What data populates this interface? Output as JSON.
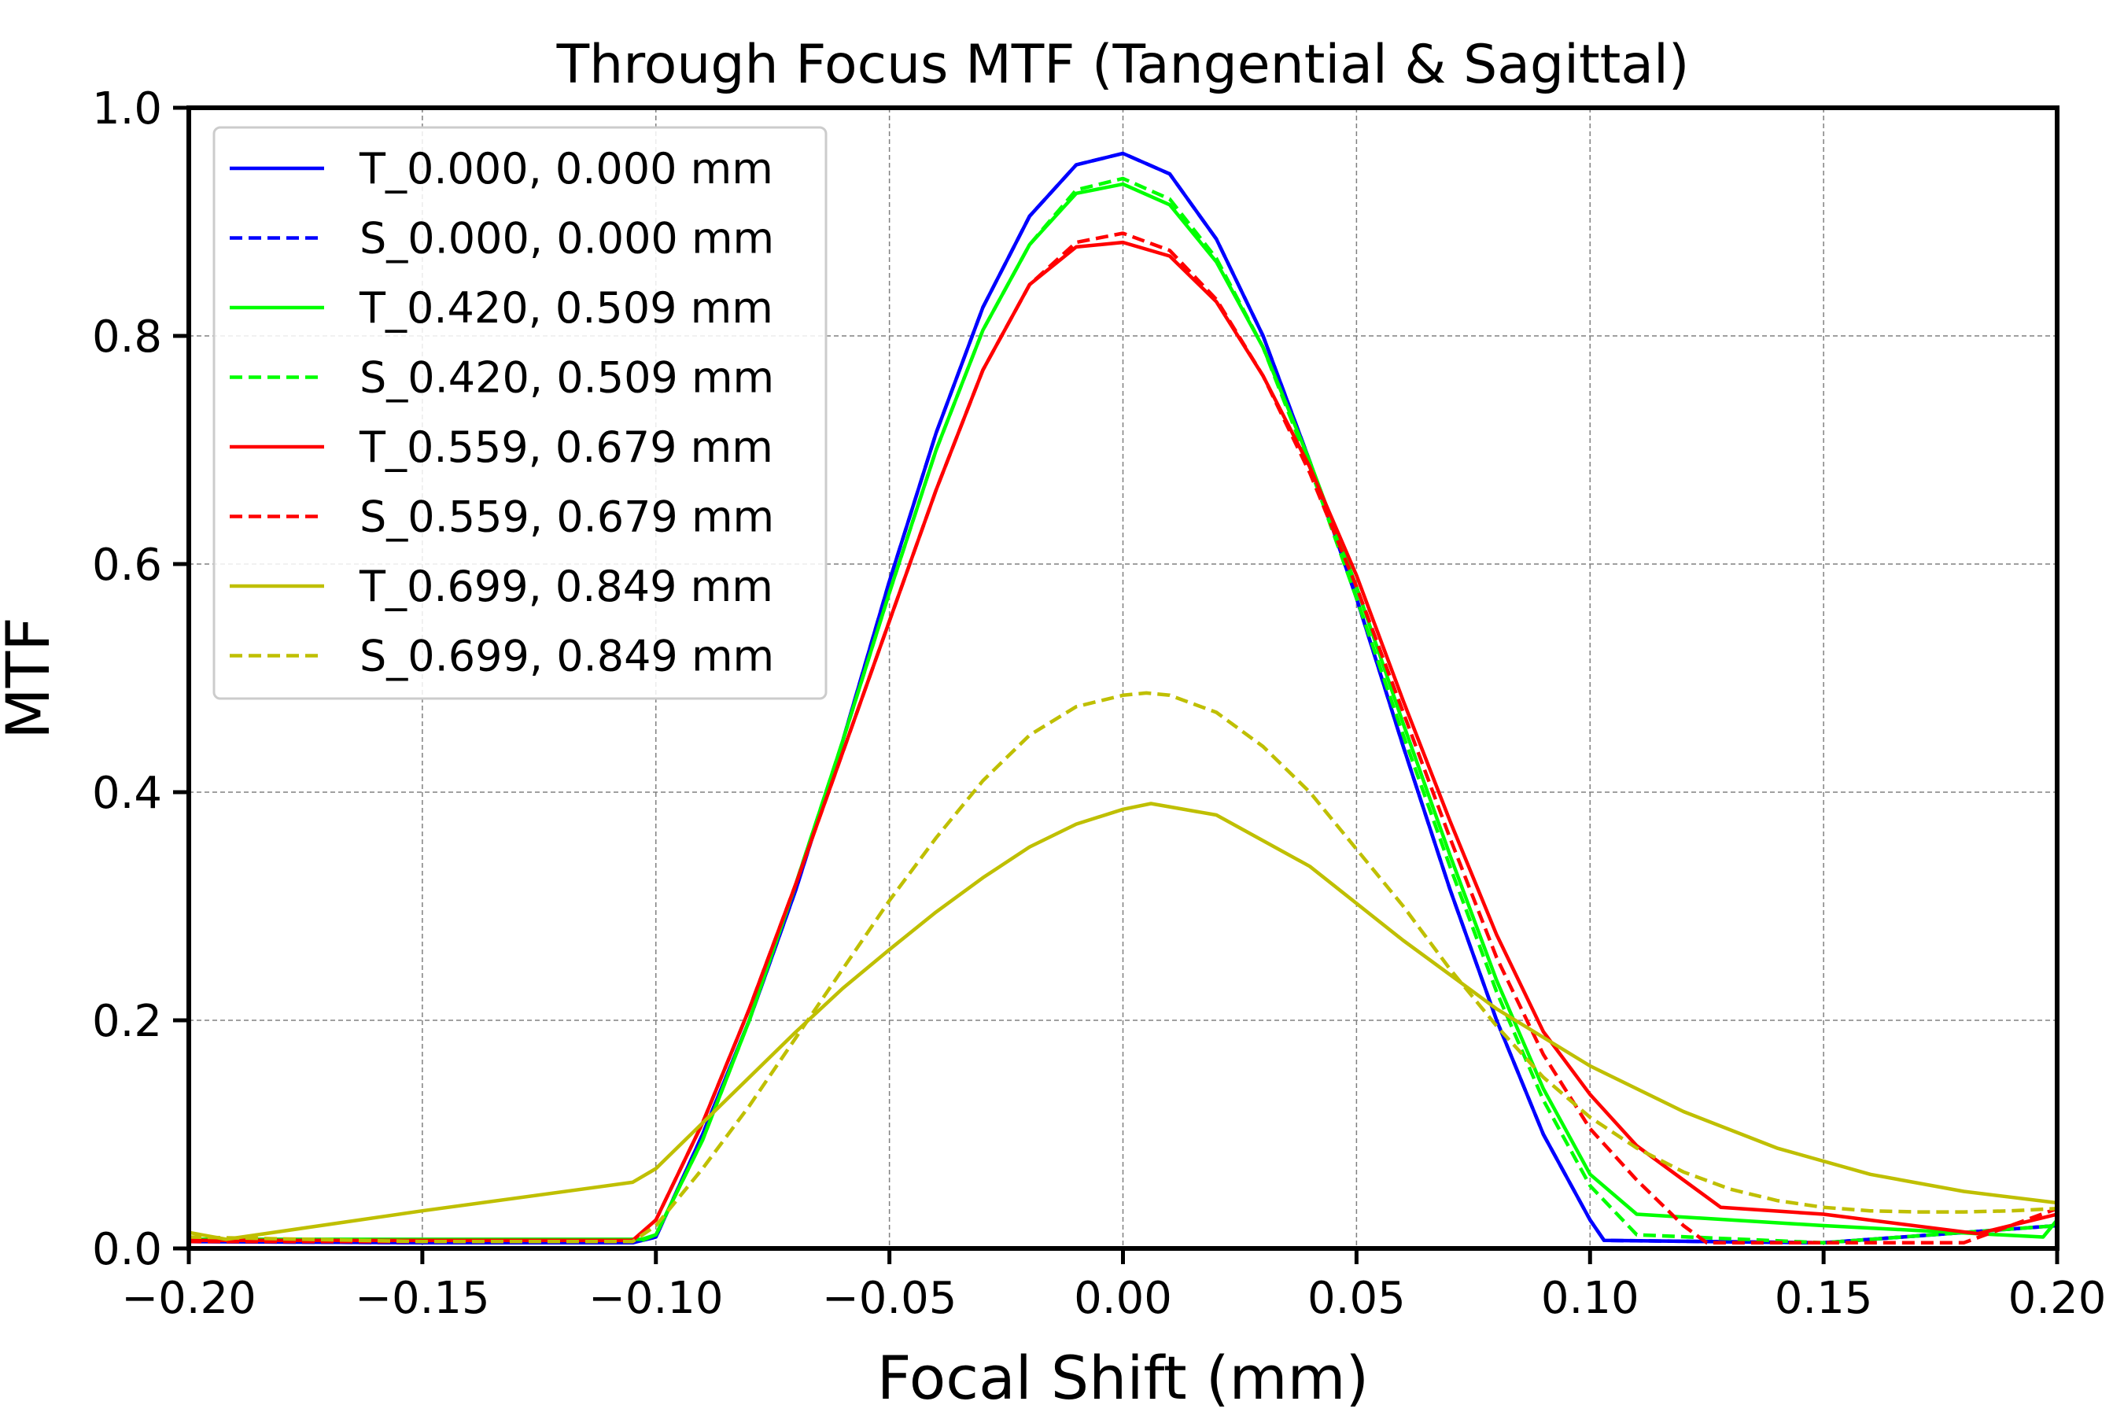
{
  "chart_data": {
    "type": "line",
    "title": "Through Focus MTF (Tangential & Sagittal)",
    "xlabel": "Focal Shift (mm)",
    "ylabel": "MTF",
    "xlim": [
      -0.2,
      0.2
    ],
    "ylim": [
      0.0,
      1.0
    ],
    "grid": true,
    "legend_position": "top-left",
    "x_ticks": [
      -0.2,
      -0.15,
      -0.1,
      -0.05,
      0.0,
      0.05,
      0.1,
      0.15,
      0.2
    ],
    "x_tick_labels": [
      "−0.20",
      "−0.15",
      "−0.10",
      "−0.05",
      "0.00",
      "0.05",
      "0.10",
      "0.15",
      "0.20"
    ],
    "y_ticks": [
      0.0,
      0.2,
      0.4,
      0.6,
      0.8,
      1.0
    ],
    "y_tick_labels": [
      "0.0",
      "0.2",
      "0.4",
      "0.6",
      "0.8",
      "1.0"
    ],
    "series": [
      {
        "name": "T_0.000, 0.000 mm",
        "color": "#0000ff",
        "dash": "solid",
        "x": [
          -0.2,
          -0.15,
          -0.105,
          -0.1,
          -0.09,
          -0.08,
          -0.07,
          -0.06,
          -0.05,
          -0.04,
          -0.03,
          -0.02,
          -0.01,
          0.0,
          0.01,
          0.02,
          0.03,
          0.04,
          0.05,
          0.06,
          0.07,
          0.08,
          0.09,
          0.1,
          0.103,
          0.15,
          0.2
        ],
        "y": [
          0.006,
          0.005,
          0.005,
          0.01,
          0.1,
          0.2,
          0.315,
          0.445,
          0.585,
          0.715,
          0.825,
          0.905,
          0.95,
          0.96,
          0.942,
          0.885,
          0.8,
          0.69,
          0.57,
          0.44,
          0.315,
          0.2,
          0.1,
          0.025,
          0.007,
          0.005,
          0.02
        ]
      },
      {
        "name": "S_0.000, 0.000 mm",
        "color": "#0000ff",
        "dash": "dashed",
        "x": [
          -0.2,
          -0.15,
          -0.105,
          -0.1,
          -0.09,
          -0.08,
          -0.07,
          -0.06,
          -0.05,
          -0.04,
          -0.03,
          -0.02,
          -0.01,
          0.0,
          0.01,
          0.02,
          0.03,
          0.04,
          0.05,
          0.06,
          0.07,
          0.08,
          0.09,
          0.1,
          0.103,
          0.15,
          0.2
        ],
        "y": [
          0.006,
          0.005,
          0.005,
          0.01,
          0.1,
          0.2,
          0.315,
          0.445,
          0.585,
          0.715,
          0.825,
          0.905,
          0.95,
          0.96,
          0.942,
          0.885,
          0.8,
          0.69,
          0.57,
          0.44,
          0.315,
          0.2,
          0.1,
          0.025,
          0.007,
          0.005,
          0.02
        ]
      },
      {
        "name": "T_0.420, 0.509 mm",
        "color": "#00ff00",
        "dash": "solid",
        "x": [
          -0.2,
          -0.15,
          -0.103,
          -0.1,
          -0.09,
          -0.08,
          -0.07,
          -0.06,
          -0.05,
          -0.04,
          -0.03,
          -0.02,
          -0.01,
          0.0,
          0.01,
          0.02,
          0.03,
          0.04,
          0.05,
          0.06,
          0.07,
          0.08,
          0.09,
          0.1,
          0.11,
          0.15,
          0.197,
          0.2
        ],
        "y": [
          0.008,
          0.008,
          0.008,
          0.012,
          0.095,
          0.2,
          0.32,
          0.445,
          0.575,
          0.7,
          0.805,
          0.88,
          0.925,
          0.933,
          0.915,
          0.865,
          0.79,
          0.69,
          0.58,
          0.46,
          0.345,
          0.235,
          0.14,
          0.065,
          0.03,
          0.02,
          0.01,
          0.025
        ]
      },
      {
        "name": "S_0.420, 0.509 mm",
        "color": "#00ff00",
        "dash": "dashed",
        "x": [
          -0.2,
          -0.15,
          -0.103,
          -0.1,
          -0.09,
          -0.08,
          -0.07,
          -0.06,
          -0.05,
          -0.04,
          -0.03,
          -0.02,
          -0.01,
          0.0,
          0.01,
          0.02,
          0.03,
          0.04,
          0.05,
          0.06,
          0.07,
          0.08,
          0.09,
          0.1,
          0.11,
          0.15,
          0.2
        ],
        "y": [
          0.007,
          0.007,
          0.007,
          0.012,
          0.095,
          0.2,
          0.32,
          0.445,
          0.575,
          0.7,
          0.805,
          0.88,
          0.928,
          0.938,
          0.92,
          0.868,
          0.79,
          0.685,
          0.57,
          0.45,
          0.335,
          0.225,
          0.13,
          0.055,
          0.012,
          0.005,
          0.02
        ]
      },
      {
        "name": "T_0.559, 0.679 mm",
        "color": "#ff0000",
        "dash": "solid",
        "x": [
          -0.2,
          -0.15,
          -0.105,
          -0.1,
          -0.09,
          -0.08,
          -0.07,
          -0.06,
          -0.05,
          -0.04,
          -0.03,
          -0.02,
          -0.01,
          0.0,
          0.01,
          0.02,
          0.03,
          0.04,
          0.05,
          0.06,
          0.07,
          0.08,
          0.09,
          0.1,
          0.11,
          0.128,
          0.15,
          0.183,
          0.2
        ],
        "y": [
          0.007,
          0.007,
          0.007,
          0.025,
          0.11,
          0.21,
          0.32,
          0.435,
          0.55,
          0.665,
          0.77,
          0.845,
          0.878,
          0.882,
          0.87,
          0.83,
          0.765,
          0.685,
          0.59,
          0.48,
          0.375,
          0.275,
          0.19,
          0.135,
          0.09,
          0.036,
          0.03,
          0.013,
          0.03
        ]
      },
      {
        "name": "S_0.559, 0.679 mm",
        "color": "#ff0000",
        "dash": "dashed",
        "x": [
          -0.2,
          -0.15,
          -0.105,
          -0.1,
          -0.09,
          -0.08,
          -0.07,
          -0.06,
          -0.05,
          -0.04,
          -0.03,
          -0.02,
          -0.01,
          0.0,
          0.01,
          0.02,
          0.03,
          0.04,
          0.05,
          0.06,
          0.07,
          0.08,
          0.09,
          0.1,
          0.11,
          0.12,
          0.125,
          0.15,
          0.18,
          0.2
        ],
        "y": [
          0.006,
          0.006,
          0.006,
          0.025,
          0.11,
          0.21,
          0.32,
          0.435,
          0.55,
          0.665,
          0.77,
          0.845,
          0.882,
          0.89,
          0.875,
          0.832,
          0.765,
          0.68,
          0.58,
          0.47,
          0.36,
          0.255,
          0.17,
          0.105,
          0.06,
          0.02,
          0.005,
          0.005,
          0.005,
          0.035
        ]
      },
      {
        "name": "T_0.699, 0.849 mm",
        "color": "#bfbf00",
        "dash": "solid",
        "x": [
          -0.2,
          -0.192,
          -0.15,
          -0.105,
          -0.1,
          -0.09,
          -0.08,
          -0.07,
          -0.06,
          -0.05,
          -0.04,
          -0.03,
          -0.02,
          -0.01,
          0.0,
          0.006,
          0.02,
          0.04,
          0.06,
          0.08,
          0.1,
          0.12,
          0.14,
          0.16,
          0.18,
          0.2
        ],
        "y": [
          0.014,
          0.008,
          0.033,
          0.058,
          0.07,
          0.11,
          0.15,
          0.19,
          0.228,
          0.262,
          0.295,
          0.325,
          0.352,
          0.372,
          0.385,
          0.39,
          0.38,
          0.335,
          0.27,
          0.21,
          0.16,
          0.12,
          0.088,
          0.065,
          0.05,
          0.04
        ]
      },
      {
        "name": "S_0.699, 0.849 mm",
        "color": "#bfbf00",
        "dash": "dashed",
        "x": [
          -0.2,
          -0.15,
          -0.105,
          -0.1,
          -0.09,
          -0.08,
          -0.07,
          -0.06,
          -0.05,
          -0.04,
          -0.03,
          -0.02,
          -0.01,
          0.0,
          0.005,
          0.01,
          0.02,
          0.03,
          0.04,
          0.05,
          0.06,
          0.07,
          0.08,
          0.09,
          0.1,
          0.11,
          0.12,
          0.13,
          0.14,
          0.15,
          0.16,
          0.17,
          0.18,
          0.19,
          0.2
        ],
        "y": [
          0.01,
          0.006,
          0.006,
          0.02,
          0.07,
          0.125,
          0.185,
          0.245,
          0.305,
          0.36,
          0.41,
          0.45,
          0.475,
          0.485,
          0.487,
          0.485,
          0.47,
          0.44,
          0.4,
          0.35,
          0.3,
          0.245,
          0.195,
          0.15,
          0.115,
          0.088,
          0.067,
          0.052,
          0.042,
          0.036,
          0.033,
          0.032,
          0.032,
          0.033,
          0.035
        ]
      }
    ]
  }
}
